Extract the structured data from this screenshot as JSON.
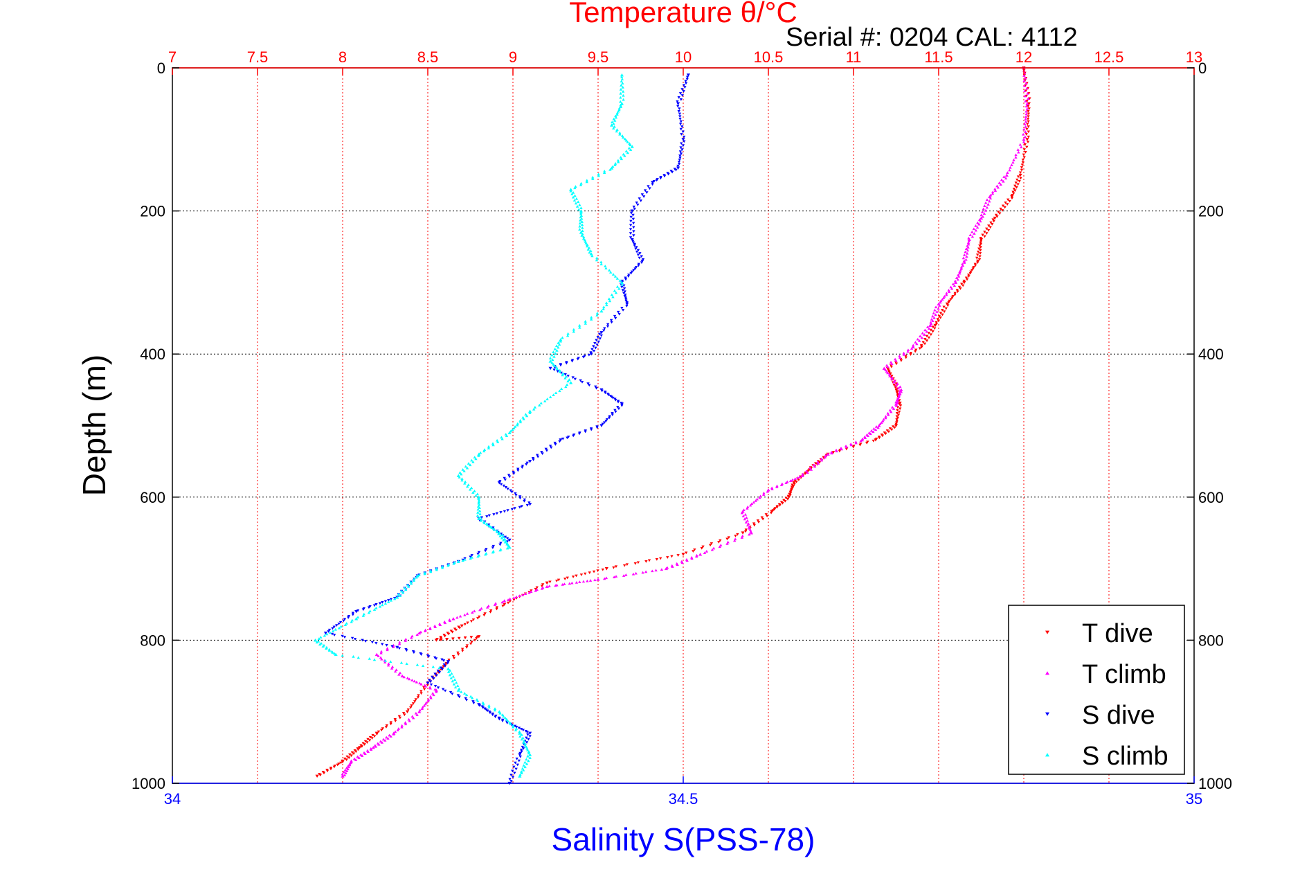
{
  "chart_data": {
    "type": "scatter",
    "title": "Temperature θ/°C",
    "subtitle": "Serial #: 0204  CAL: 4112",
    "xlabel_bottom": "Salinity S(PSS-78)",
    "ylabel": "Depth (m)",
    "temperature_axis": {
      "range": [
        7,
        13
      ],
      "ticks": [
        "7",
        "7.5",
        "8",
        "8.5",
        "9",
        "9.5",
        "10",
        "10.5",
        "11",
        "11.5",
        "12",
        "12.5",
        "13"
      ]
    },
    "salinity_axis": {
      "range": [
        34,
        35
      ],
      "ticks": [
        "34",
        "34.5",
        "35"
      ]
    },
    "depth_axis": {
      "range": [
        0,
        1000
      ],
      "reversed": true,
      "ticks": [
        "0",
        "200",
        "400",
        "600",
        "800",
        "1000"
      ]
    },
    "grid": true,
    "legend_position": "bottom-right",
    "colors": {
      "t_dive": "#ff0000",
      "t_climb": "#ff00ff",
      "s_dive": "#0000ff",
      "s_climb": "#00ffff",
      "top_axis": "#ff0000",
      "bottom_axis": "#0000ff"
    },
    "series": [
      {
        "name": "T dive",
        "axis": "temperature",
        "color": "#ff0000",
        "marker": "triangle-down",
        "points": [
          [
            12.0,
            0
          ],
          [
            12.03,
            50
          ],
          [
            12.02,
            100
          ],
          [
            11.98,
            150
          ],
          [
            11.93,
            180
          ],
          [
            11.83,
            210
          ],
          [
            11.75,
            240
          ],
          [
            11.73,
            270
          ],
          [
            11.65,
            300
          ],
          [
            11.55,
            330
          ],
          [
            11.48,
            360
          ],
          [
            11.4,
            390
          ],
          [
            11.2,
            420
          ],
          [
            11.25,
            445
          ],
          [
            11.27,
            470
          ],
          [
            11.25,
            500
          ],
          [
            11.13,
            520
          ],
          [
            10.85,
            540
          ],
          [
            10.75,
            560
          ],
          [
            10.65,
            580
          ],
          [
            10.62,
            600
          ],
          [
            10.52,
            620
          ],
          [
            10.35,
            650
          ],
          [
            10.0,
            680
          ],
          [
            9.55,
            700
          ],
          [
            9.2,
            720
          ],
          [
            8.95,
            750
          ],
          [
            8.7,
            780
          ],
          [
            8.55,
            800
          ],
          [
            8.8,
            795
          ],
          [
            8.62,
            830
          ],
          [
            8.5,
            860
          ],
          [
            8.38,
            900
          ],
          [
            8.2,
            930
          ],
          [
            8.1,
            950
          ],
          [
            8.0,
            970
          ],
          [
            7.85,
            990
          ]
        ]
      },
      {
        "name": "T climb",
        "axis": "temperature",
        "color": "#ff00ff",
        "marker": "triangle-up",
        "points": [
          [
            12.0,
            0
          ],
          [
            12.02,
            50
          ],
          [
            12.0,
            100
          ],
          [
            11.9,
            150
          ],
          [
            11.8,
            180
          ],
          [
            11.75,
            210
          ],
          [
            11.68,
            240
          ],
          [
            11.65,
            270
          ],
          [
            11.6,
            300
          ],
          [
            11.5,
            330
          ],
          [
            11.45,
            360
          ],
          [
            11.35,
            390
          ],
          [
            11.18,
            420
          ],
          [
            11.28,
            450
          ],
          [
            11.25,
            470
          ],
          [
            11.15,
            500
          ],
          [
            11.05,
            520
          ],
          [
            10.85,
            540
          ],
          [
            10.7,
            570
          ],
          [
            10.5,
            590
          ],
          [
            10.35,
            620
          ],
          [
            10.4,
            650
          ],
          [
            10.1,
            680
          ],
          [
            9.9,
            700
          ],
          [
            9.5,
            715
          ],
          [
            9.2,
            725
          ],
          [
            8.95,
            745
          ],
          [
            8.65,
            770
          ],
          [
            8.45,
            790
          ],
          [
            8.2,
            820
          ],
          [
            8.35,
            850
          ],
          [
            8.55,
            870
          ],
          [
            8.45,
            900
          ],
          [
            8.3,
            930
          ],
          [
            8.18,
            950
          ],
          [
            8.05,
            970
          ],
          [
            8.0,
            990
          ]
        ]
      },
      {
        "name": "S dive",
        "axis": "salinity",
        "color": "#0000ff",
        "marker": "triangle-down",
        "points": [
          [
            34.505,
            10
          ],
          [
            34.495,
            50
          ],
          [
            34.5,
            100
          ],
          [
            34.495,
            140
          ],
          [
            34.47,
            160
          ],
          [
            34.45,
            200
          ],
          [
            34.45,
            240
          ],
          [
            34.46,
            270
          ],
          [
            34.44,
            300
          ],
          [
            34.445,
            330
          ],
          [
            34.42,
            370
          ],
          [
            34.41,
            400
          ],
          [
            34.37,
            420
          ],
          [
            34.42,
            450
          ],
          [
            34.44,
            470
          ],
          [
            34.42,
            500
          ],
          [
            34.38,
            520
          ],
          [
            34.35,
            550
          ],
          [
            34.32,
            580
          ],
          [
            34.35,
            610
          ],
          [
            34.3,
            630
          ],
          [
            34.33,
            660
          ],
          [
            34.28,
            690
          ],
          [
            34.24,
            710
          ],
          [
            34.22,
            740
          ],
          [
            34.18,
            760
          ],
          [
            34.15,
            790
          ],
          [
            34.22,
            810
          ],
          [
            34.27,
            830
          ],
          [
            34.25,
            860
          ],
          [
            34.3,
            890
          ],
          [
            34.32,
            910
          ],
          [
            34.35,
            930
          ],
          [
            34.34,
            960
          ],
          [
            34.33,
            1000
          ]
        ]
      },
      {
        "name": "S climb",
        "axis": "salinity",
        "color": "#00ffff",
        "marker": "triangle-up",
        "points": [
          [
            34.44,
            10
          ],
          [
            34.44,
            50
          ],
          [
            34.43,
            80
          ],
          [
            34.45,
            110
          ],
          [
            34.43,
            140
          ],
          [
            34.39,
            170
          ],
          [
            34.4,
            200
          ],
          [
            34.4,
            230
          ],
          [
            34.41,
            260
          ],
          [
            34.44,
            300
          ],
          [
            34.42,
            340
          ],
          [
            34.38,
            380
          ],
          [
            34.37,
            410
          ],
          [
            34.39,
            440
          ],
          [
            34.35,
            480
          ],
          [
            34.33,
            510
          ],
          [
            34.3,
            540
          ],
          [
            34.28,
            570
          ],
          [
            34.3,
            600
          ],
          [
            34.3,
            630
          ],
          [
            34.32,
            650
          ],
          [
            34.33,
            670
          ],
          [
            34.28,
            690
          ],
          [
            34.24,
            710
          ],
          [
            34.22,
            740
          ],
          [
            34.18,
            770
          ],
          [
            34.14,
            800
          ],
          [
            34.16,
            820
          ],
          [
            34.27,
            840
          ],
          [
            34.28,
            870
          ],
          [
            34.32,
            900
          ],
          [
            34.34,
            930
          ],
          [
            34.35,
            960
          ],
          [
            34.34,
            990
          ]
        ]
      }
    ]
  }
}
